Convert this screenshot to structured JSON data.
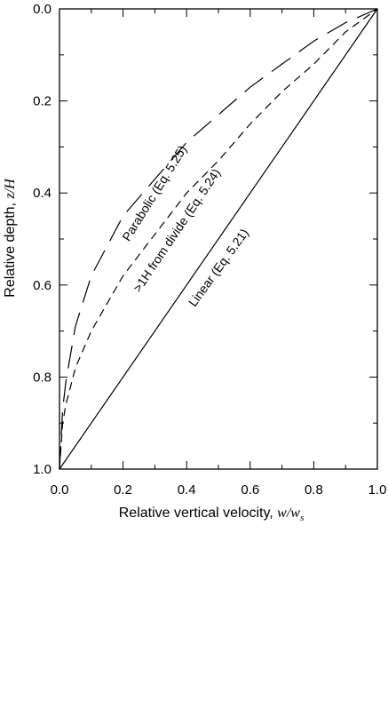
{
  "chart_data": {
    "type": "line",
    "xlabel": "Relative vertical velocity, ",
    "xlabel_var": "w",
    "xlabel_var2": "/w",
    "xlabel_sub": "s",
    "ylabel": "Relative depth, ",
    "ylabel_var": "z/H",
    "xlim": [
      0.0,
      1.0
    ],
    "ylim": [
      0.0,
      1.0
    ],
    "y_inverted": true,
    "grid": false,
    "x_ticks": [
      "0.0",
      "0.2",
      "0.4",
      "0.6",
      "0.8",
      "1.0"
    ],
    "y_ticks": [
      "0.0",
      "0.2",
      "0.4",
      "0.6",
      "0.8",
      "1.0"
    ],
    "series": [
      {
        "name": "Linear (Eq. 5.21)",
        "style": "solid",
        "x": [
          0.0,
          1.0
        ],
        "y": [
          1.0,
          0.0
        ]
      },
      {
        "name": ">1H from divide (Eq. 5.24)",
        "style": "short-dash",
        "x": [
          0.0,
          0.01,
          0.02,
          0.05,
          0.1,
          0.2,
          0.3,
          0.4,
          0.5,
          0.6,
          0.7,
          0.8,
          0.9,
          1.0
        ],
        "y": [
          1.0,
          0.9,
          0.86,
          0.78,
          0.7,
          0.58,
          0.49,
          0.4,
          0.33,
          0.25,
          0.18,
          0.12,
          0.05,
          0.0
        ]
      },
      {
        "name": "Parabolic (Eq. 5.25)",
        "style": "long-dash",
        "x": [
          0.0,
          0.01,
          0.02,
          0.05,
          0.1,
          0.2,
          0.3,
          0.4,
          0.5,
          0.6,
          0.7,
          0.8,
          0.9,
          1.0
        ],
        "y": [
          1.0,
          0.87,
          0.81,
          0.69,
          0.58,
          0.45,
          0.37,
          0.29,
          0.23,
          0.17,
          0.12,
          0.07,
          0.03,
          0.0
        ]
      }
    ]
  }
}
